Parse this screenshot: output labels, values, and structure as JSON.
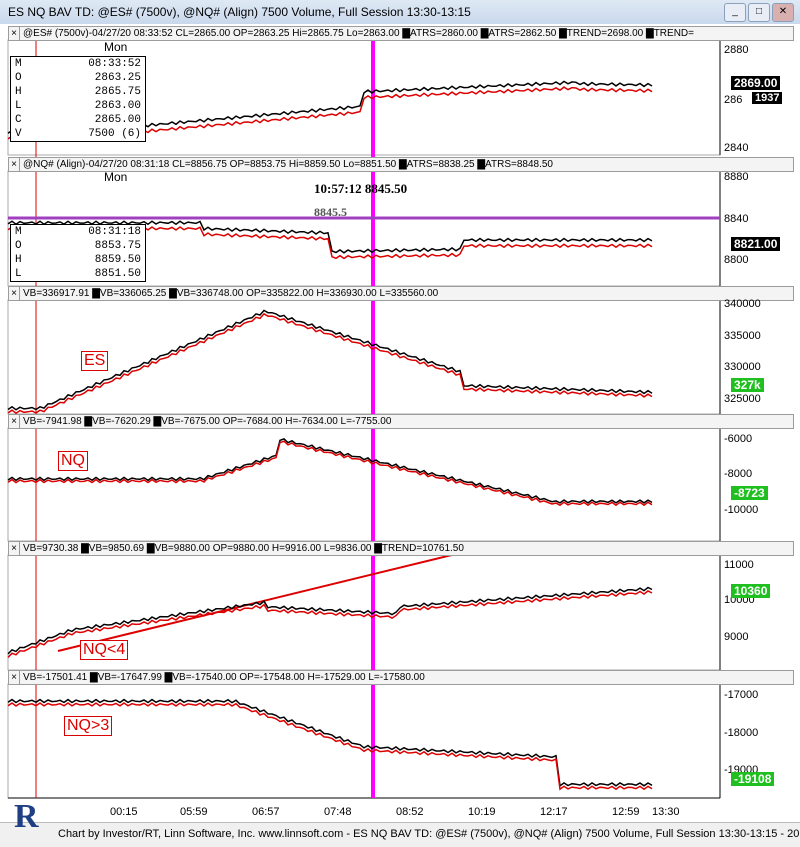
{
  "window": {
    "title": "ES NQ BAV TD: @ES# (7500v), @NQ# (Align) 7500 Volume, Full Session 13:30-13:15",
    "btn_minimize": "_",
    "btn_maximize": "□",
    "btn_close": "✕"
  },
  "panes": [
    {
      "id": "es",
      "header": "@ES# (7500v)-04/27/20 08:33:52 CL=2865.00 OP=2863.25 Hi=2865.75 Lo=2863.00 ▇ATRS=2860.00 ▇ATRS=2862.50 ▇TREND=2698.00 ▇TREND=",
      "axis": [
        "2880",
        "286",
        "2840"
      ],
      "price": "2869.00",
      "price2": "1937"
    },
    {
      "id": "nq",
      "header": "@NQ# (Align)-04/27/20 08:31:18 CL=8856.75 OP=8853.75 Hi=8859.50 Lo=8851.50 ▇ATRS=8838.25 ▇ATRS=8848.50",
      "axis": [
        "8880",
        "8840",
        "8800"
      ],
      "price": "8821.00"
    },
    {
      "id": "vb1",
      "header": "VB=336917.91 ▇VB=336065.25 ▇VB=336748.00 OP=335822.00 H=336930.00 L=335560.00",
      "axis": [
        "340000",
        "335000",
        "330000",
        "325000"
      ],
      "price": "327k",
      "label": "ES"
    },
    {
      "id": "vb2",
      "header": "VB=-7941.98 ▇VB=-7620.29 ▇VB=-7675.00 OP=-7684.00 H=-7634.00 L=-7755.00",
      "axis": [
        "-6000",
        "-8000",
        "-10000"
      ],
      "price": "-8723",
      "label": "NQ"
    },
    {
      "id": "vb3",
      "header": "VB=9730.38 ▇VB=9850.69 ▇VB=9880.00 OP=9880.00 H=9916.00 L=9836.00 ▇TREND=10761.50",
      "axis": [
        "11000",
        "10000",
        "9000"
      ],
      "price": "10360",
      "label": "NQ<4"
    },
    {
      "id": "vb4",
      "header": "VB=-17501.41 ▇VB=-17647.99 ▇VB=-17540.00 OP=-17548.00 H=-17529.00 L=-17580.00",
      "axis": [
        "-17000",
        "-18000",
        "-19000"
      ],
      "price": "-19108",
      "label": "NQ>3"
    }
  ],
  "es_info": {
    "day": "Mon",
    "time": "08:33:52",
    "O": "2863.25",
    "H": "2865.75",
    "L": "2863.00",
    "C": "2865.00",
    "V": "7500 (6)"
  },
  "nq_info": {
    "day": "Mon",
    "time": "08:31:18",
    "O": "8853.75",
    "H": "8859.50",
    "L": "8851.50"
  },
  "nq_crosshair": {
    "readout": "10:57:12 8845.50",
    "partial": "8845.5"
  },
  "x_axis": [
    "00:15",
    "05:59",
    "06:57",
    "07:48",
    "08:52",
    "10:19",
    "12:17",
    "12:59",
    "13:30"
  ],
  "statusbar": {
    "text": "Chart by Investor/RT, Linn Software, Inc. www.linnsoft.com - ES NQ BAV TD: @ES# (7500v), @NQ# (Align) 7500 Volume, Full Session 13:30-13:15 - 20"
  },
  "logo": {
    "letter": "R"
  },
  "colors": {
    "red": "#e00000",
    "magenta": "#ff00ff",
    "green_box": "#1fbf1f",
    "black_box": "#000000"
  }
}
